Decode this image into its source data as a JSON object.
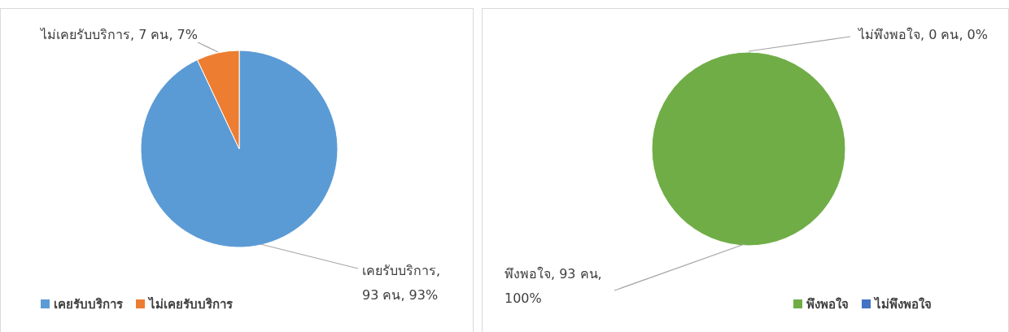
{
  "chart_data": [
    {
      "type": "pie",
      "categories": [
        "เคยรับบริการ",
        "ไม่เคยรับบริการ"
      ],
      "values": [
        93,
        7
      ],
      "colors": [
        "#5b9bd5",
        "#ed7d31"
      ],
      "value_labels": [
        "เคยรับบริการ, 93 คน, 93%",
        "ไม่เคยรับบริการ, 7 คน, 7%"
      ],
      "legend": "bottom left"
    },
    {
      "type": "pie",
      "categories": [
        "พึงพอใจ",
        "ไม่พึงพอใจ"
      ],
      "values": [
        93,
        0
      ],
      "colors": [
        "#70ad47",
        "#4472c4"
      ],
      "value_labels": [
        "พึงพอใจ, 93 คน, 100%",
        "ไม่พึงพอใจ, 0 คน, 0%"
      ],
      "legend": "bottom right"
    }
  ]
}
